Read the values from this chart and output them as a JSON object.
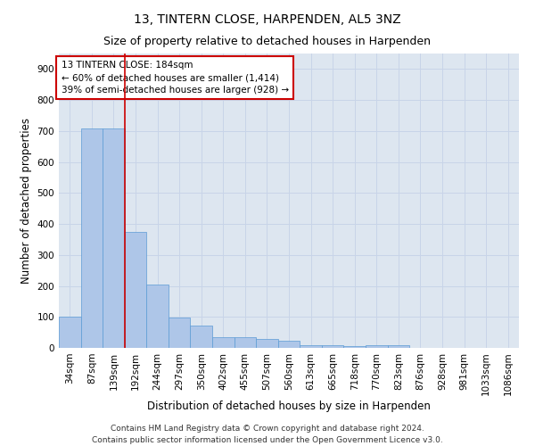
{
  "title": "13, TINTERN CLOSE, HARPENDEN, AL5 3NZ",
  "subtitle": "Size of property relative to detached houses in Harpenden",
  "xlabel": "Distribution of detached houses by size in Harpenden",
  "ylabel": "Number of detached properties",
  "bar_labels": [
    "34sqm",
    "87sqm",
    "139sqm",
    "192sqm",
    "244sqm",
    "297sqm",
    "350sqm",
    "402sqm",
    "455sqm",
    "507sqm",
    "560sqm",
    "613sqm",
    "665sqm",
    "718sqm",
    "770sqm",
    "823sqm",
    "876sqm",
    "928sqm",
    "981sqm",
    "1033sqm",
    "1086sqm"
  ],
  "bar_values": [
    100,
    707,
    707,
    375,
    205,
    97,
    72,
    34,
    35,
    28,
    23,
    10,
    10,
    6,
    10,
    10,
    0,
    0,
    0,
    0,
    0
  ],
  "bar_color": "#aec6e8",
  "bar_edge_color": "#5b9bd5",
  "vline_x": 2.5,
  "property_line_label": "13 TINTERN CLOSE: 184sqm",
  "annotation_line1": "← 60% of detached houses are smaller (1,414)",
  "annotation_line2": "39% of semi-detached houses are larger (928) →",
  "annotation_box_color": "#ffffff",
  "annotation_box_edge_color": "#cc0000",
  "vline_color": "#cc0000",
  "ylim": [
    0,
    950
  ],
  "yticks": [
    0,
    100,
    200,
    300,
    400,
    500,
    600,
    700,
    800,
    900
  ],
  "grid_color": "#c8d4e8",
  "background_color": "#dde6f0",
  "footer_line1": "Contains HM Land Registry data © Crown copyright and database right 2024.",
  "footer_line2": "Contains public sector information licensed under the Open Government Licence v3.0.",
  "title_fontsize": 10,
  "subtitle_fontsize": 9,
  "xlabel_fontsize": 8.5,
  "ylabel_fontsize": 8.5,
  "tick_fontsize": 7.5,
  "annotation_fontsize": 7.5,
  "footer_fontsize": 6.5
}
